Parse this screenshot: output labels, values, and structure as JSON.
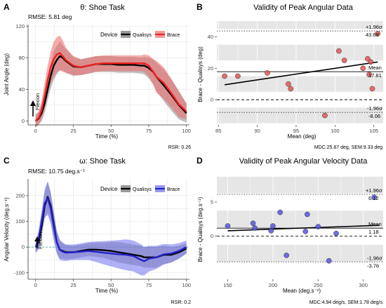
{
  "panels": {
    "A": {
      "letter": "A",
      "title": "θ: Shoe Task",
      "rmse": "RMSE: 5.81 deg",
      "xlabel": "Time (%)",
      "ylabel": "Joint Angle (deg)",
      "legend_title": "Device",
      "legend": [
        "Qualisys",
        "Brace"
      ],
      "arrow_label": "Flexion",
      "footer": "RSR: 0.26"
    },
    "B": {
      "letter": "B",
      "title": "Validity of Peak Angular Data",
      "xlabel": "Mean (deg)",
      "ylabel": "Brace - Qualisys (deg)",
      "upper_label": "+1.96σ",
      "upper_value": "43.68",
      "mean_label": "Mean",
      "mean_value": "17.81",
      "lower_label": "-1.96σ",
      "lower_value": "-8.06",
      "footer": "MDC:25.87 deg, SEM:9.33 deg"
    },
    "C": {
      "letter": "C",
      "title": "ω: Shoe Task",
      "rmse": "RMSE: 10.75 deg.s⁻¹",
      "xlabel": "Time (%)",
      "ylabel": "Angular Velocity (deg.s⁻¹)",
      "legend_title": "Device",
      "legend": [
        "Qualisys",
        "Brace"
      ],
      "arrow_label": "Flexion",
      "footer": "RSR: 0.2"
    },
    "D": {
      "letter": "D",
      "title": "Validity of Peak Angular Velocity Data",
      "xlabel": "Mean (deg.s⁻¹)",
      "ylabel": "Brace - Qualisys (deg.s⁻¹)",
      "upper_label": "+1.96σ",
      "upper_value": "6.12",
      "mean_label": "Mean",
      "mean_value": "1.18",
      "lower_label": "-1.96σ",
      "lower_value": "-3.76",
      "footer": "MDC:4.94 deg/s, SEM:1.78 deg/s"
    }
  },
  "colors": {
    "qualisys": "#000000",
    "brace_A": "#ee2222",
    "brace_C": "#2222cc",
    "panel_bg_B": "#ebebeb",
    "band": "#d9d9d9",
    "grid": "#ffffff",
    "point_B": "#e05555",
    "point_D": "#5555dd"
  },
  "chart_data": [
    {
      "panel": "A",
      "type": "line",
      "title": "θ: Shoe Task",
      "xlabel": "Time (%)",
      "ylabel": "Joint Angle (deg)",
      "xlim": [
        -5,
        102
      ],
      "ylim": [
        -5,
        122
      ],
      "xticks": [
        0,
        25,
        50,
        75,
        100
      ],
      "yticks": [
        0,
        40,
        80,
        120
      ],
      "grid": true,
      "legend_position": "top-right",
      "x": [
        0,
        2,
        4,
        6,
        8,
        10,
        12,
        14,
        16,
        18,
        20,
        25,
        30,
        35,
        40,
        45,
        50,
        55,
        60,
        65,
        70,
        72,
        75,
        78,
        80,
        85,
        90,
        95,
        100
      ],
      "series": [
        {
          "name": "Qualisys",
          "values": [
            0,
            3,
            10,
            22,
            40,
            57,
            70,
            77,
            82,
            80,
            76,
            69,
            68,
            70,
            72,
            72,
            72,
            71,
            71,
            71,
            70,
            70,
            67,
            62,
            56,
            45,
            33,
            20,
            10
          ],
          "band": [
            8,
            8,
            10,
            12,
            14,
            16,
            18,
            18,
            18,
            16,
            15,
            12,
            10,
            10,
            10,
            10,
            10,
            10,
            10,
            10,
            10,
            11,
            13,
            16,
            18,
            20,
            20,
            18,
            12
          ]
        },
        {
          "name": "Brace",
          "values": [
            0,
            4,
            14,
            32,
            52,
            68,
            78,
            84,
            86,
            82,
            77,
            70,
            68,
            70,
            72,
            73,
            73,
            73,
            73,
            73,
            73,
            73,
            70,
            62,
            56,
            48,
            35,
            21,
            12
          ],
          "band": [
            8,
            8,
            12,
            16,
            18,
            20,
            22,
            22,
            22,
            20,
            16,
            12,
            10,
            10,
            10,
            10,
            10,
            10,
            10,
            10,
            10,
            11,
            13,
            16,
            20,
            20,
            18,
            16,
            10
          ]
        }
      ]
    },
    {
      "panel": "B",
      "type": "scatter",
      "title": "Validity of Peak Angular Data",
      "xlabel": "Mean (deg)",
      "ylabel": "Brace - Qualisys (deg)",
      "xlim": [
        84.8,
        106.2
      ],
      "ylim": [
        -16,
        50
      ],
      "xticks": [
        85,
        90,
        95,
        100,
        105
      ],
      "yticks": [
        0,
        20,
        40
      ],
      "grid": true,
      "points": [
        [
          85.8,
          15
        ],
        [
          87.5,
          15
        ],
        [
          91.3,
          17
        ],
        [
          94.0,
          10
        ],
        [
          94.3,
          7
        ],
        [
          98.7,
          -10
        ],
        [
          100.5,
          31
        ],
        [
          101.2,
          25
        ],
        [
          103.6,
          20
        ],
        [
          104.2,
          26
        ],
        [
          104.4,
          16
        ],
        [
          104.6,
          24
        ],
        [
          104.8,
          7
        ],
        [
          105.5,
          42
        ]
      ],
      "regression": [
        [
          85.8,
          9.5
        ],
        [
          105.5,
          24
        ]
      ],
      "mean_diff": 17.81,
      "upper_loa": 43.68,
      "lower_loa": -8.06
    },
    {
      "panel": "C",
      "type": "line",
      "title": "ω: Shoe Task",
      "xlabel": "Time (%)",
      "ylabel": "Angular Velocity (deg.s⁻¹)",
      "xlim": [
        -5,
        102
      ],
      "ylim": [
        -125,
        265
      ],
      "xticks": [
        0,
        25,
        50,
        75,
        100
      ],
      "yticks": [
        -100,
        0,
        100,
        200
      ],
      "grid": true,
      "legend_position": "top-right",
      "x": [
        0,
        2,
        4,
        6,
        8,
        10,
        12,
        14,
        16,
        18,
        20,
        25,
        30,
        35,
        40,
        45,
        50,
        55,
        60,
        65,
        70,
        72,
        75,
        80,
        85,
        90,
        95,
        100
      ],
      "series": [
        {
          "name": "Qualisys",
          "values": [
            0,
            20,
            80,
            160,
            195,
            160,
            90,
            20,
            -10,
            -15,
            -20,
            -20,
            -15,
            -10,
            -10,
            -12,
            -15,
            -20,
            -25,
            -30,
            -35,
            -40,
            -40,
            -40,
            -30,
            -30,
            -20,
            -5
          ],
          "band": [
            20,
            30,
            40,
            50,
            60,
            55,
            50,
            40,
            35,
            30,
            28,
            25,
            25,
            25,
            28,
            30,
            35,
            40,
            40,
            40,
            40,
            40,
            40,
            40,
            35,
            30,
            25,
            20
          ]
        },
        {
          "name": "Brace",
          "values": [
            0,
            30,
            100,
            170,
            190,
            150,
            80,
            20,
            -10,
            -18,
            -22,
            -20,
            -18,
            -15,
            -18,
            -22,
            -25,
            -28,
            -30,
            -35,
            -50,
            -55,
            -45,
            -40,
            -28,
            -25,
            -15,
            0
          ],
          "band": [
            25,
            35,
            45,
            55,
            65,
            60,
            55,
            45,
            40,
            35,
            32,
            30,
            32,
            35,
            40,
            45,
            50,
            55,
            60,
            60,
            60,
            55,
            50,
            45,
            40,
            35,
            30,
            25
          ]
        }
      ]
    },
    {
      "panel": "D",
      "type": "scatter",
      "title": "Validity of Peak Angular Velocity Data",
      "xlabel": "Mean (deg.s⁻¹)",
      "ylabel": "Brace - Qualisys (deg.s⁻¹)",
      "xlim": [
        138,
        322
      ],
      "ylim": [
        -6.3,
        8.7
      ],
      "xticks": [
        150,
        200,
        250,
        300
      ],
      "yticks": [
        0,
        5
      ],
      "grid": true,
      "points": [
        [
          150,
          1.5
        ],
        [
          178,
          1.9
        ],
        [
          180,
          1.2
        ],
        [
          198,
          0.8
        ],
        [
          200,
          1.5
        ],
        [
          208,
          3.5
        ],
        [
          215,
          -2.8
        ],
        [
          236,
          0.7
        ],
        [
          238,
          3.2
        ],
        [
          250,
          1.4
        ],
        [
          262,
          -3.6
        ],
        [
          270,
          0.4
        ],
        [
          312,
          5.7
        ]
      ],
      "regression": [
        [
          150,
          0.8
        ],
        [
          318,
          1.6
        ]
      ],
      "mean_diff": 1.18,
      "upper_loa": 6.12,
      "lower_loa": -3.76
    }
  ]
}
